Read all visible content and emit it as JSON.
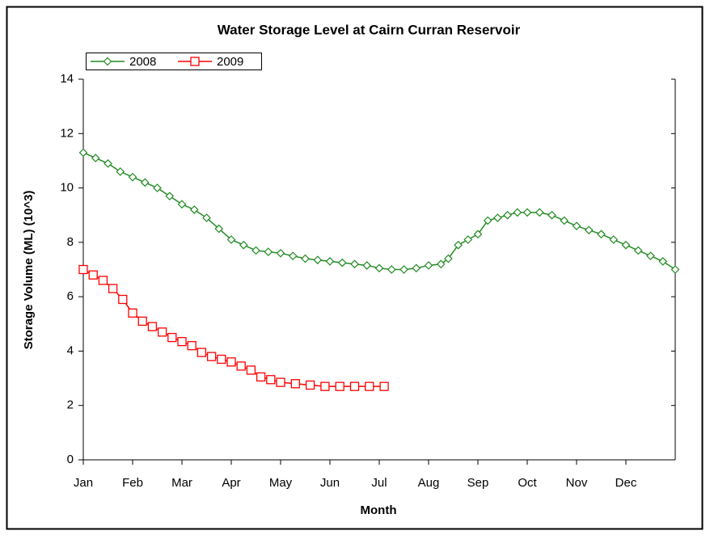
{
  "chart_data": {
    "type": "line",
    "title": "Water Storage Level at Cairn Curran Reservoir",
    "xlabel": "Month",
    "ylabel": "Storage Volume (ML) (10^3)",
    "xlim": [
      0,
      12
    ],
    "xticks": [
      {
        "value": 0,
        "label": "Jan"
      },
      {
        "value": 1,
        "label": "Feb"
      },
      {
        "value": 2,
        "label": "Mar"
      },
      {
        "value": 3,
        "label": "Apr"
      },
      {
        "value": 4,
        "label": "May"
      },
      {
        "value": 5,
        "label": "Jun"
      },
      {
        "value": 6,
        "label": "Jul"
      },
      {
        "value": 7,
        "label": "Aug"
      },
      {
        "value": 8,
        "label": "Sep"
      },
      {
        "value": 9,
        "label": "Oct"
      },
      {
        "value": 10,
        "label": "Nov"
      },
      {
        "value": 11,
        "label": "Dec"
      }
    ],
    "ylim": [
      0,
      14
    ],
    "yticks": [
      0,
      2,
      4,
      6,
      8,
      10,
      12,
      14
    ],
    "legend": "upper left",
    "series": [
      {
        "name": "2008",
        "color": "#228b22",
        "marker": "diamond",
        "x": [
          0,
          0.25,
          0.5,
          0.75,
          1,
          1.25,
          1.5,
          1.75,
          2,
          2.25,
          2.5,
          2.75,
          3,
          3.25,
          3.5,
          3.75,
          4,
          4.25,
          4.5,
          4.75,
          5,
          5.25,
          5.5,
          5.75,
          6,
          6.25,
          6.5,
          6.75,
          7,
          7.25,
          7.4,
          7.6,
          7.8,
          8,
          8.2,
          8.4,
          8.6,
          8.8,
          9,
          9.25,
          9.5,
          9.75,
          10,
          10.25,
          10.5,
          10.75,
          11,
          11.25,
          11.5,
          11.75,
          12
        ],
        "values": [
          11.3,
          11.1,
          10.9,
          10.6,
          10.4,
          10.2,
          10.0,
          9.7,
          9.4,
          9.2,
          8.9,
          8.5,
          8.1,
          7.9,
          7.7,
          7.65,
          7.6,
          7.5,
          7.4,
          7.35,
          7.3,
          7.25,
          7.2,
          7.15,
          7.05,
          7.0,
          7.0,
          7.05,
          7.15,
          7.2,
          7.4,
          7.9,
          8.1,
          8.3,
          8.8,
          8.9,
          9.0,
          9.1,
          9.1,
          9.1,
          9.0,
          8.8,
          8.6,
          8.45,
          8.3,
          8.1,
          7.9,
          7.7,
          7.5,
          7.3,
          7.0
        ]
      },
      {
        "name": "2009",
        "color": "#ff0000",
        "marker": "square",
        "x": [
          0,
          0.2,
          0.4,
          0.6,
          0.8,
          1,
          1.2,
          1.4,
          1.6,
          1.8,
          2,
          2.2,
          2.4,
          2.6,
          2.8,
          3,
          3.2,
          3.4,
          3.6,
          3.8,
          4,
          4.3,
          4.6,
          4.9,
          5.2,
          5.5,
          5.8,
          6.1
        ],
        "values": [
          7.0,
          6.8,
          6.6,
          6.3,
          5.9,
          5.4,
          5.1,
          4.9,
          4.7,
          4.5,
          4.35,
          4.2,
          3.95,
          3.8,
          3.7,
          3.6,
          3.45,
          3.3,
          3.05,
          2.95,
          2.85,
          2.8,
          2.75,
          2.7,
          2.7,
          2.7,
          2.7,
          2.7
        ]
      }
    ]
  }
}
